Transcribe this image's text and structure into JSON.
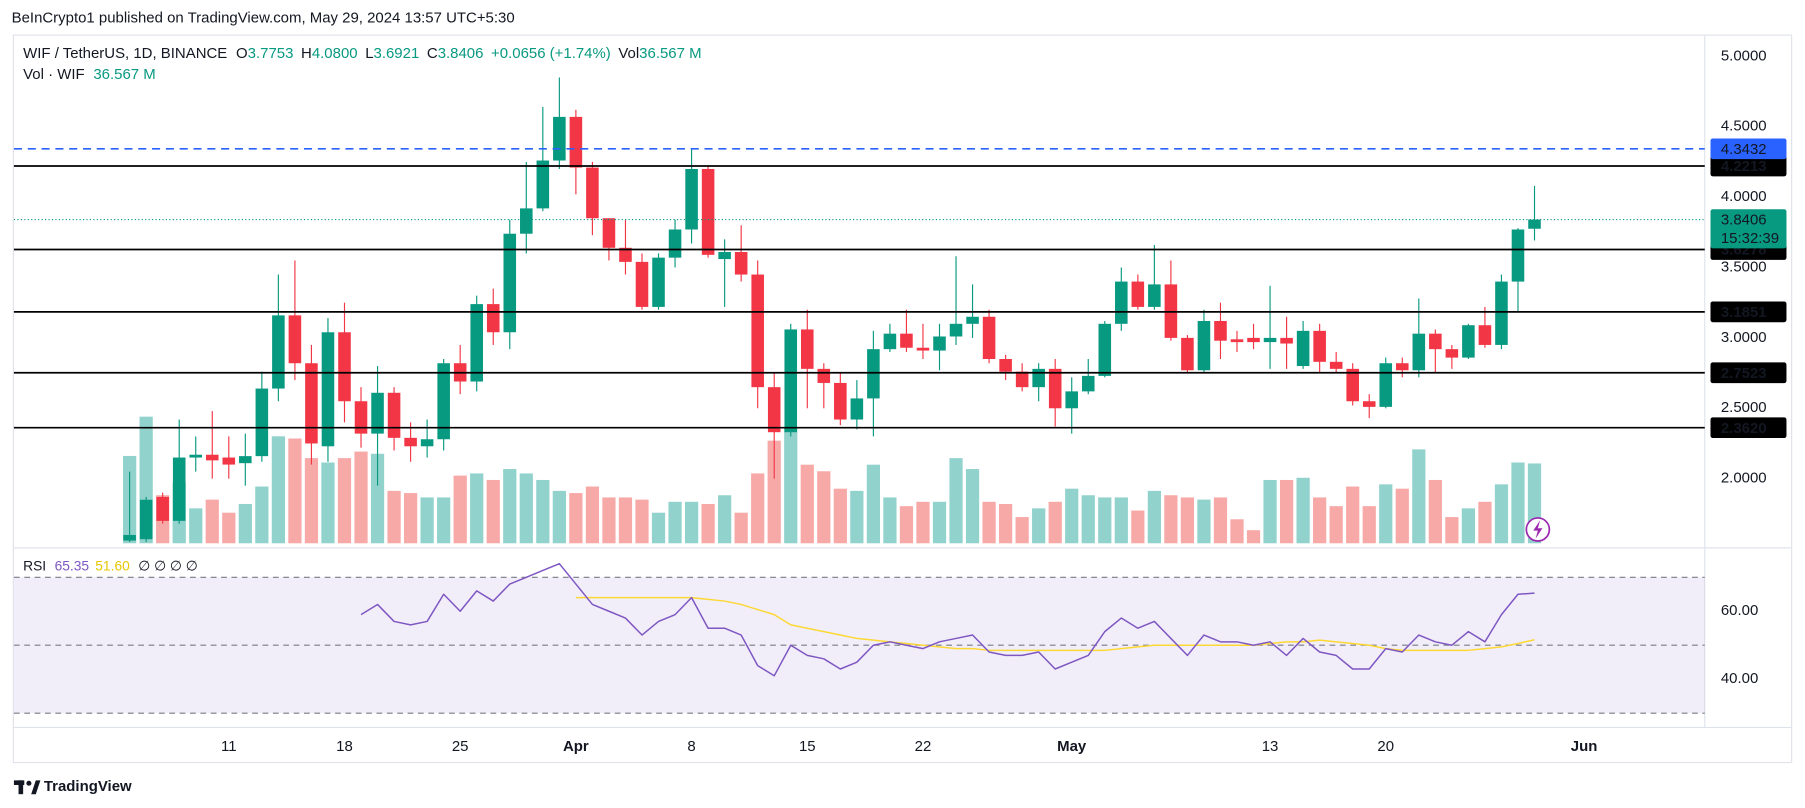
{
  "header": {
    "text": "BeInCrypto1 published on TradingView.com, May 29, 2024 13:57 UTC+5:30"
  },
  "footer": {
    "brand": "TradingView"
  },
  "chart_data": {
    "type": "candlestick",
    "legend": {
      "symbol": "WIF / TetherUS, 1D, BINANCE",
      "items": [
        {
          "key": "O",
          "value": "3.7753"
        },
        {
          "key": "H",
          "value": "4.0800"
        },
        {
          "key": "L",
          "value": "3.6921"
        },
        {
          "key": "C",
          "value": "3.8406"
        }
      ],
      "change": "+0.0656 (+1.74%)",
      "vol_key": "Vol",
      "vol_value": "36.567 M",
      "vol_title": "Vol · WIF",
      "vol_title_value": "36.567 M"
    },
    "up_color": "#089981",
    "down_color": "#f23645",
    "volume_up_color": "#92d2cc",
    "volume_down_color": "#f7a9a7",
    "xlim": [
      -7,
      95.3
    ],
    "xticks": [
      {
        "value": 6,
        "label": "11"
      },
      {
        "value": 13,
        "label": "18"
      },
      {
        "value": 20,
        "label": "25"
      },
      {
        "value": 27,
        "label": "Apr"
      },
      {
        "value": 34,
        "label": "8"
      },
      {
        "value": 41,
        "label": "15"
      },
      {
        "value": 48,
        "label": "22"
      },
      {
        "value": 57,
        "label": "May"
      },
      {
        "value": 69,
        "label": "13"
      },
      {
        "value": 76,
        "label": "20"
      },
      {
        "value": 88,
        "label": "Jun"
      }
    ],
    "ylim": [
      1.541,
      5.155
    ],
    "yticks": [
      {
        "value": 2,
        "label": "2.0000"
      },
      {
        "value": 2.5,
        "label": "2.5000"
      },
      {
        "value": 3,
        "label": "3.0000"
      },
      {
        "value": 3.5,
        "label": "3.5000"
      },
      {
        "value": 4,
        "label": "4.0000"
      },
      {
        "value": 4.5,
        "label": "4.5000"
      },
      {
        "value": 5,
        "label": "5.0000"
      }
    ],
    "grid": true,
    "dashed_level": {
      "value": 4.3432,
      "color": "#2962ff"
    },
    "levels": [
      4.2213,
      3.6278,
      3.1851,
      2.7523,
      {
        "value": 2.362,
        "label": "2.3620"
      }
    ],
    "level_color": "#000000",
    "last_price": 3.8406,
    "countdown": "15:32:39",
    "open": [
      1.56,
      1.57,
      1.87,
      1.7,
      2.15,
      2.17,
      2.15,
      2.11,
      2.16,
      2.64,
      3.16,
      2.82,
      2.23,
      3.04,
      2.55,
      2.32,
      2.61,
      2.29,
      2.23,
      2.28,
      2.82,
      2.69,
      3.24,
      3.04,
      3.74,
      3.92,
      4.26,
      4.57,
      4.21,
      3.85,
      3.64,
      3.54,
      3.22,
      3.57,
      3.77,
      4.2,
      3.56,
      3.61,
      3.45,
      2.65,
      2.33,
      3.06,
      2.78,
      2.68,
      2.42,
      2.57,
      2.92,
      3.03,
      2.93,
      2.91,
      3.01,
      3.1,
      3.15,
      2.85,
      2.76,
      2.65,
      2.78,
      2.5,
      2.62,
      2.73,
      3.1,
      3.4,
      3.22,
      3.38,
      3.0,
      2.77,
      3.12,
      2.99,
      3.0,
      2.97,
      3.0,
      2.8,
      3.05,
      2.83,
      2.78,
      2.55,
      2.51,
      2.82,
      2.77,
      3.03,
      2.92,
      2.86,
      3.09,
      2.95,
      3.4,
      3.7753
    ],
    "high": [
      2.05,
      1.87,
      1.9,
      2.42,
      2.3,
      2.48,
      2.3,
      2.32,
      2.76,
      3.45,
      3.55,
      2.95,
      3.14,
      3.25,
      2.65,
      2.8,
      2.65,
      2.4,
      2.42,
      2.85,
      2.95,
      3.3,
      3.35,
      3.84,
      4.25,
      4.64,
      4.85,
      4.62,
      4.25,
      3.85,
      3.84,
      3.6,
      3.6,
      3.84,
      4.34,
      4.22,
      3.7,
      3.8,
      3.55,
      2.75,
      3.1,
      3.2,
      2.82,
      2.75,
      2.7,
      3.05,
      3.1,
      3.2,
      3.1,
      3.1,
      3.58,
      3.38,
      3.2,
      2.88,
      2.82,
      2.82,
      2.85,
      2.72,
      2.85,
      3.12,
      3.5,
      3.45,
      3.66,
      3.55,
      3.02,
      3.2,
      3.25,
      3.05,
      3.1,
      3.37,
      3.15,
      3.12,
      3.1,
      2.9,
      2.82,
      2.6,
      2.86,
      2.86,
      3.28,
      3.06,
      2.95,
      3.1,
      3.22,
      3.45,
      3.78,
      4.08
    ],
    "low": [
      1.55,
      1.55,
      1.68,
      1.68,
      2.05,
      2.0,
      2.0,
      1.95,
      2.12,
      2.55,
      2.7,
      2.1,
      2.12,
      2.4,
      2.22,
      1.95,
      2.2,
      2.12,
      2.15,
      2.2,
      2.6,
      2.62,
      2.95,
      2.92,
      3.6,
      3.9,
      4.2,
      4.02,
      3.73,
      3.55,
      3.45,
      3.2,
      3.2,
      3.5,
      3.67,
      3.57,
      3.22,
      3.4,
      2.5,
      2.0,
      2.3,
      2.5,
      2.5,
      2.38,
      2.35,
      2.3,
      2.9,
      2.9,
      2.85,
      2.77,
      2.95,
      3.0,
      2.82,
      2.7,
      2.62,
      2.55,
      2.37,
      2.32,
      2.6,
      2.72,
      3.05,
      3.2,
      3.2,
      2.98,
      2.75,
      2.75,
      2.85,
      2.9,
      2.92,
      2.78,
      2.78,
      2.78,
      2.75,
      2.75,
      2.52,
      2.43,
      2.5,
      2.72,
      2.72,
      2.75,
      2.78,
      2.85,
      2.93,
      2.92,
      3.18,
      3.6921
    ],
    "close": [
      1.6,
      1.85,
      1.7,
      2.15,
      2.17,
      2.13,
      2.1,
      2.16,
      2.64,
      3.16,
      2.82,
      2.25,
      3.04,
      2.55,
      2.32,
      2.61,
      2.29,
      2.23,
      2.28,
      2.82,
      2.69,
      3.24,
      3.04,
      3.74,
      3.92,
      4.26,
      4.57,
      4.21,
      3.85,
      3.64,
      3.54,
      3.22,
      3.57,
      3.77,
      4.2,
      3.59,
      3.61,
      3.45,
      2.65,
      2.33,
      3.06,
      2.78,
      2.68,
      2.42,
      2.57,
      2.92,
      3.03,
      2.93,
      2.91,
      3.01,
      3.1,
      3.15,
      2.85,
      2.76,
      2.65,
      2.78,
      2.5,
      2.62,
      2.73,
      3.1,
      3.4,
      3.22,
      3.38,
      3.0,
      2.77,
      3.12,
      2.98,
      2.97,
      2.97,
      3.0,
      2.96,
      3.05,
      2.83,
      2.78,
      2.55,
      2.51,
      2.82,
      2.77,
      3.03,
      2.92,
      2.86,
      3.09,
      2.95,
      3.4,
      3.77,
      3.8406
    ],
    "volume": [
      40,
      58,
      22,
      28,
      16,
      20,
      14,
      18,
      26,
      49,
      48,
      39,
      37,
      39,
      42,
      41,
      24,
      23,
      21,
      21,
      31,
      32,
      29,
      34,
      32,
      29,
      24,
      23,
      26,
      21,
      21,
      20,
      14,
      19,
      19,
      18,
      22,
      14,
      32,
      47,
      53,
      36,
      33,
      25,
      24,
      36,
      21,
      17,
      19,
      19,
      39,
      34,
      19,
      18,
      12,
      16,
      19,
      25,
      22,
      21,
      21,
      15,
      24,
      22,
      21,
      20,
      21,
      11,
      6,
      29,
      29,
      30,
      21,
      17,
      26,
      17,
      27,
      25,
      43,
      29,
      12,
      16,
      19,
      27,
      37,
      36.567
    ],
    "rsi": {
      "title": "RSI",
      "value_label": "65.35",
      "ma_label": "51.60",
      "extra": "∅ ∅ ∅ ∅",
      "color": "#7e57c2",
      "ma_color": "#fdd835",
      "ylim": [
        25.8,
        77.3
      ],
      "yticks": [
        {
          "value": 40,
          "label": "40.00"
        },
        {
          "value": 60,
          "label": "60.00"
        }
      ],
      "bands": [
        30,
        50,
        70
      ],
      "values": [
        null,
        null,
        null,
        null,
        null,
        null,
        null,
        null,
        null,
        null,
        null,
        null,
        null,
        null,
        59,
        62,
        57,
        56,
        57,
        65,
        60,
        66,
        63,
        68,
        70,
        72,
        74,
        68,
        62,
        60,
        58,
        53,
        57,
        59,
        64,
        55,
        55,
        53,
        44,
        41,
        50,
        47,
        46,
        43,
        45,
        50,
        51,
        50,
        49,
        51,
        52,
        53,
        48,
        47,
        47,
        48,
        43,
        45,
        47,
        54,
        58,
        55,
        57,
        52,
        47,
        53,
        51,
        51,
        50,
        51,
        47,
        52,
        48,
        47,
        43,
        43,
        49,
        48,
        53,
        51,
        50,
        54,
        51,
        59,
        65,
        65.35
      ],
      "ma": [
        null,
        null,
        null,
        null,
        null,
        null,
        null,
        null,
        null,
        null,
        null,
        null,
        null,
        null,
        null,
        null,
        null,
        null,
        null,
        null,
        null,
        null,
        null,
        null,
        null,
        null,
        null,
        64,
        64,
        64,
        64,
        64,
        64,
        64,
        64,
        63.5,
        63,
        62,
        60.5,
        59,
        56,
        55,
        54,
        53,
        52,
        51.5,
        51,
        50.5,
        50,
        49.5,
        49,
        49,
        48.5,
        48.5,
        48.5,
        48.5,
        48.5,
        48.5,
        48.5,
        48.5,
        49,
        49.5,
        50,
        50,
        50,
        50,
        50,
        50,
        50,
        50.5,
        51,
        51,
        51.5,
        51,
        50.5,
        50,
        49,
        48.5,
        48.5,
        48.5,
        48.5,
        48.5,
        49,
        49.5,
        50.5,
        51.6
      ]
    }
  }
}
